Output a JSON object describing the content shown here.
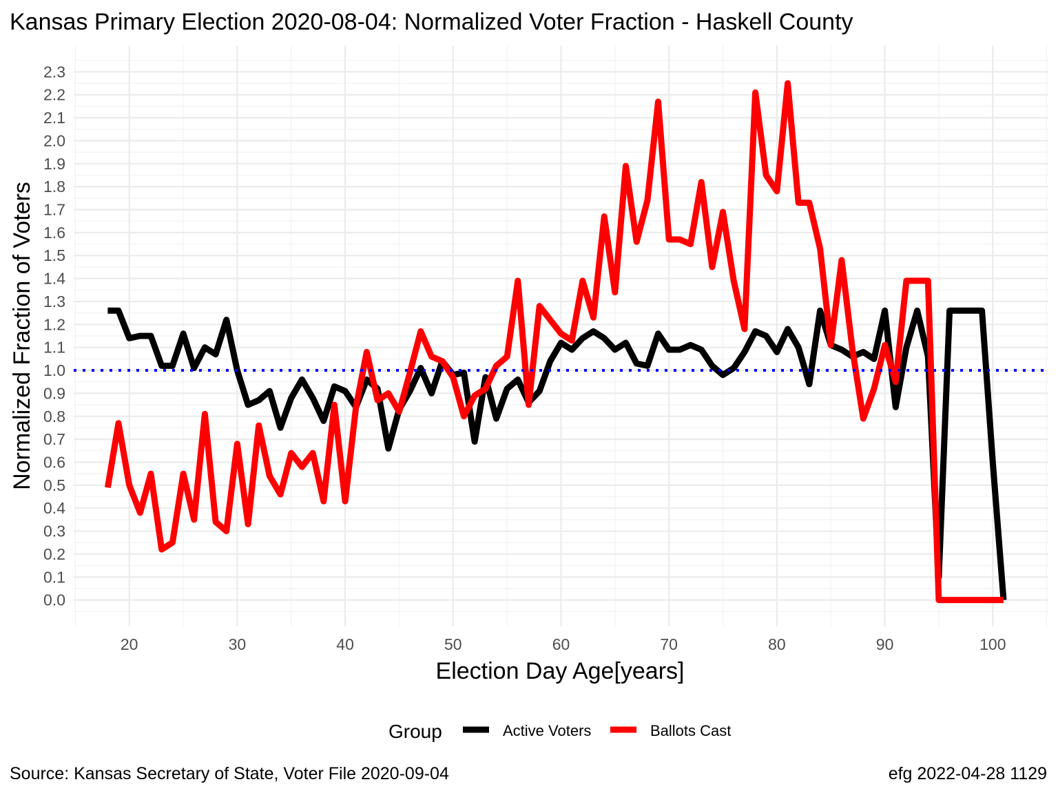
{
  "chart_data": {
    "type": "line",
    "title": "Kansas Primary Election 2020-08-04:  Normalized Voter Fraction - Haskell County",
    "xlabel": "Election Day Age[years]",
    "ylabel": "Normalized Fraction of Voters",
    "xlim": [
      14.85,
      105.15
    ],
    "ylim": [
      -0.115,
      2.415
    ],
    "x_ticks": [
      20,
      30,
      40,
      50,
      60,
      70,
      80,
      90,
      100
    ],
    "x_tick_labels": [
      "20",
      "30",
      "40",
      "50",
      "60",
      "70",
      "80",
      "90",
      "100"
    ],
    "y_ticks": [
      0.0,
      0.1,
      0.2,
      0.3,
      0.4,
      0.5,
      0.6,
      0.7,
      0.8,
      0.9,
      1.0,
      1.1,
      1.2,
      1.3,
      1.4,
      1.5,
      1.6,
      1.7,
      1.8,
      1.9,
      2.0,
      2.1,
      2.2,
      2.3
    ],
    "y_tick_labels": [
      "0.0",
      "0.1",
      "0.2",
      "0.3",
      "0.4",
      "0.5",
      "0.6",
      "0.7",
      "0.8",
      "0.9",
      "1.0",
      "1.1",
      "1.2",
      "1.3",
      "1.4",
      "1.5",
      "1.6",
      "1.7",
      "1.8",
      "1.9",
      "2.0",
      "2.1",
      "2.2",
      "2.3"
    ],
    "grid": true,
    "reference_line": {
      "y": 1.0,
      "style": "dotted",
      "color": "#0000ff"
    },
    "legend": {
      "title": "Group",
      "position": "bottom"
    },
    "series": [
      {
        "name": "Active Voters",
        "color": "#000000",
        "x": [
          18,
          19,
          20,
          21,
          22,
          23,
          24,
          25,
          26,
          27,
          28,
          29,
          30,
          31,
          32,
          33,
          34,
          35,
          36,
          37,
          38,
          39,
          40,
          41,
          42,
          43,
          44,
          45,
          46,
          47,
          48,
          49,
          50,
          51,
          52,
          53,
          54,
          55,
          56,
          57,
          58,
          59,
          60,
          61,
          62,
          63,
          64,
          65,
          66,
          67,
          68,
          69,
          70,
          71,
          72,
          73,
          74,
          75,
          76,
          77,
          78,
          79,
          80,
          81,
          82,
          83,
          84,
          85,
          86,
          87,
          88,
          89,
          90,
          91,
          92,
          93,
          94,
          95,
          96,
          97,
          98,
          99,
          100,
          101
        ],
        "values": [
          1.26,
          1.26,
          1.14,
          1.15,
          1.15,
          1.02,
          1.02,
          1.16,
          1.01,
          1.1,
          1.07,
          1.22,
          1.0,
          0.85,
          0.87,
          0.91,
          0.75,
          0.88,
          0.96,
          0.88,
          0.78,
          0.93,
          0.91,
          0.84,
          0.96,
          0.92,
          0.66,
          0.83,
          0.91,
          1.01,
          0.9,
          1.04,
          0.98,
          0.99,
          0.69,
          0.97,
          0.79,
          0.92,
          0.96,
          0.86,
          0.91,
          1.04,
          1.12,
          1.09,
          1.14,
          1.17,
          1.14,
          1.09,
          1.12,
          1.03,
          1.02,
          1.16,
          1.09,
          1.09,
          1.11,
          1.09,
          1.02,
          0.98,
          1.01,
          1.08,
          1.17,
          1.15,
          1.08,
          1.18,
          1.1,
          0.94,
          1.26,
          1.11,
          1.09,
          1.06,
          1.08,
          1.05,
          1.26,
          0.84,
          1.1,
          1.26,
          1.06,
          0.1,
          1.26,
          1.26,
          1.26,
          1.26,
          0.6,
          0.0
        ]
      },
      {
        "name": "Ballots Cast",
        "color": "#ff0000",
        "x": [
          18,
          19,
          20,
          21,
          22,
          23,
          24,
          25,
          26,
          27,
          28,
          29,
          30,
          31,
          32,
          33,
          34,
          35,
          36,
          37,
          38,
          39,
          40,
          41,
          42,
          43,
          44,
          45,
          46,
          47,
          48,
          49,
          50,
          51,
          52,
          53,
          54,
          55,
          56,
          57,
          58,
          59,
          60,
          61,
          62,
          63,
          64,
          65,
          66,
          67,
          68,
          69,
          70,
          71,
          72,
          73,
          74,
          75,
          76,
          77,
          78,
          79,
          80,
          81,
          82,
          83,
          84,
          85,
          86,
          87,
          88,
          89,
          90,
          91,
          92,
          93,
          94,
          95,
          96,
          97,
          98,
          99,
          100,
          101
        ],
        "values": [
          0.49,
          0.77,
          0.5,
          0.38,
          0.55,
          0.22,
          0.25,
          0.55,
          0.35,
          0.81,
          0.34,
          0.3,
          0.68,
          0.33,
          0.76,
          0.54,
          0.46,
          0.64,
          0.58,
          0.64,
          0.43,
          0.85,
          0.43,
          0.84,
          1.08,
          0.87,
          0.9,
          0.82,
          0.99,
          1.17,
          1.06,
          1.04,
          0.97,
          0.8,
          0.89,
          0.92,
          1.02,
          1.06,
          1.39,
          0.85,
          1.28,
          1.22,
          1.16,
          1.13,
          1.39,
          1.23,
          1.67,
          1.34,
          1.89,
          1.56,
          1.74,
          2.17,
          1.57,
          1.57,
          1.55,
          1.82,
          1.45,
          1.69,
          1.39,
          1.18,
          2.21,
          1.85,
          1.78,
          2.25,
          1.73,
          1.73,
          1.53,
          1.11,
          1.48,
          1.09,
          0.79,
          0.92,
          1.11,
          0.95,
          1.39,
          1.39,
          1.39,
          0.0,
          0.0,
          0.0,
          0.0,
          0.0,
          0.0,
          0.0
        ]
      }
    ]
  },
  "footer": {
    "source": "Source:  Kansas Secretary of State, Voter File  2020-09-04",
    "stamp": "efg 2022-04-28 1129"
  }
}
